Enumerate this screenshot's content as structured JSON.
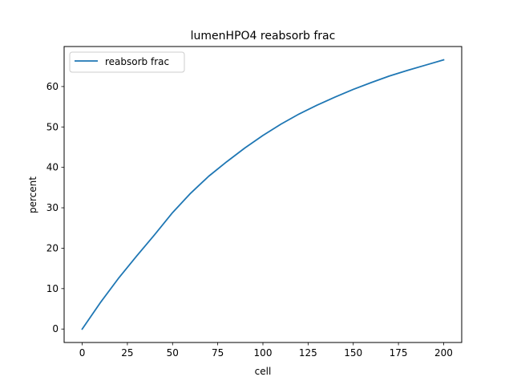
{
  "chart_data": {
    "type": "line",
    "title": "lumenHPO4 reabsorb frac",
    "xlabel": "cell",
    "ylabel": "percent",
    "xlim": [
      -10,
      210
    ],
    "ylim": [
      -3.33,
      69.9
    ],
    "xticks": [
      0,
      25,
      50,
      75,
      100,
      125,
      150,
      175,
      200
    ],
    "yticks": [
      0,
      10,
      20,
      30,
      40,
      50,
      60
    ],
    "grid": false,
    "legend_position": "upper-left",
    "series": [
      {
        "name": "reabsorb frac",
        "color": "#1f77b4",
        "x": [
          0,
          10,
          20,
          30,
          40,
          50,
          60,
          70,
          80,
          90,
          100,
          110,
          120,
          130,
          140,
          150,
          160,
          170,
          180,
          190,
          200
        ],
        "y": [
          0,
          6.5,
          12.5,
          18.0,
          23.3,
          28.8,
          33.6,
          37.8,
          41.4,
          44.8,
          47.9,
          50.7,
          53.2,
          55.4,
          57.4,
          59.3,
          61.0,
          62.6,
          64.0,
          65.3,
          66.6
        ]
      }
    ]
  }
}
